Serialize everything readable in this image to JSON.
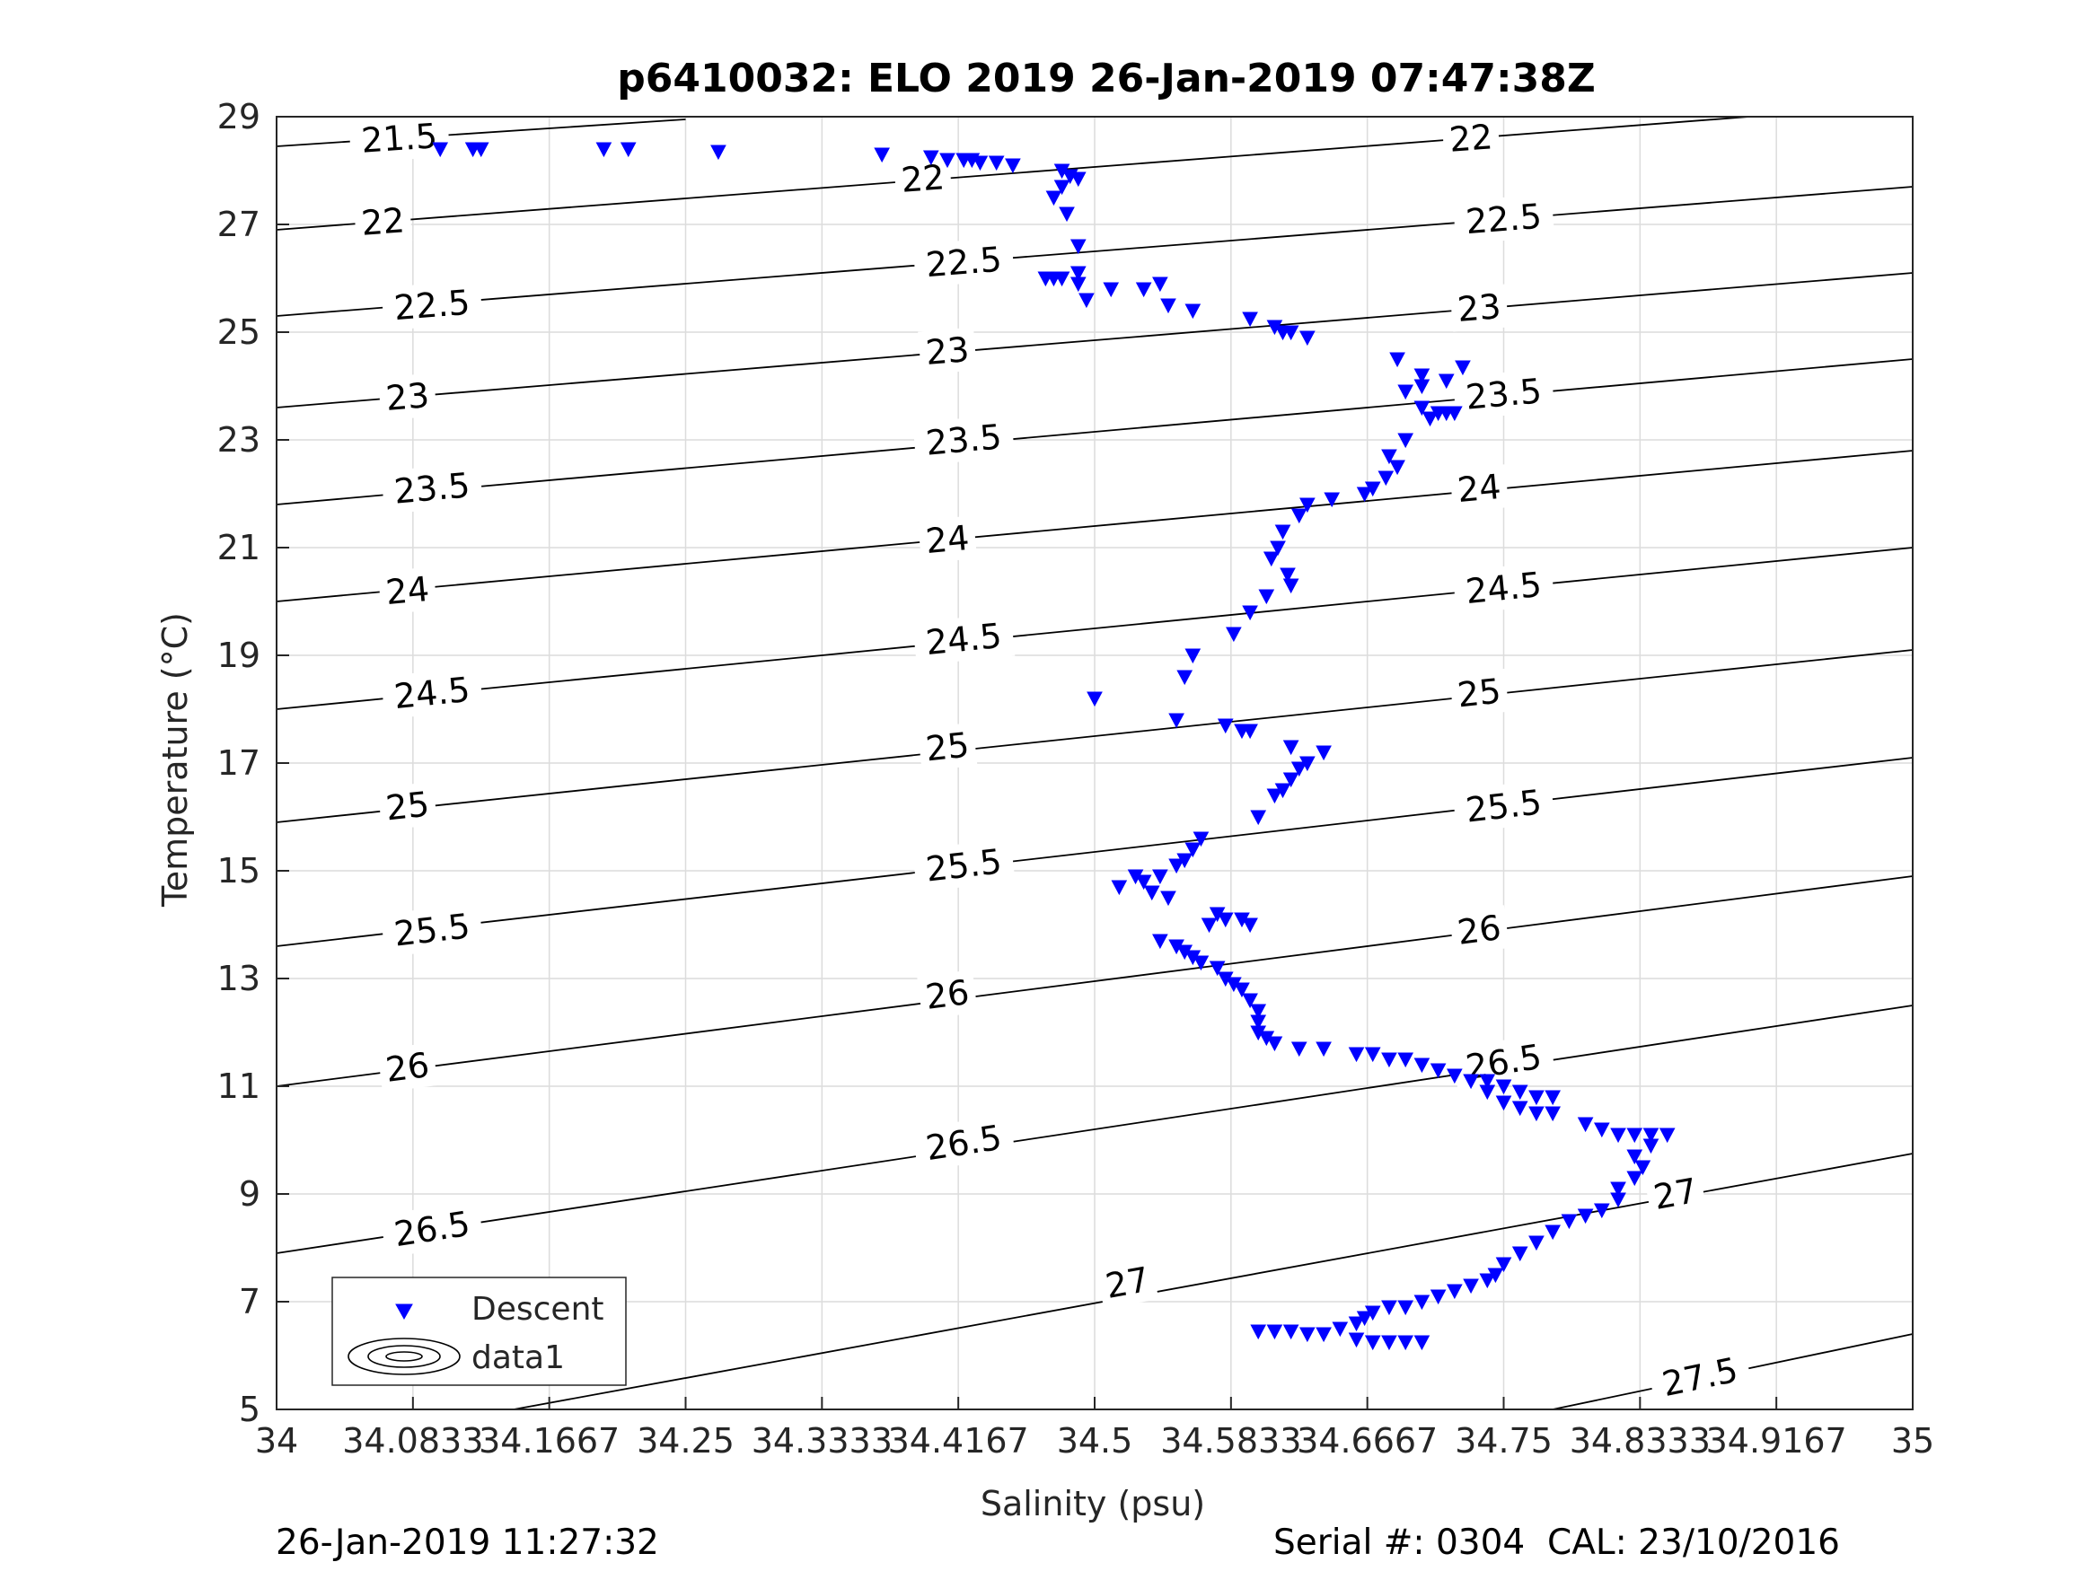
{
  "chart_data": {
    "type": "scatter",
    "title": "p6410032: ELO 2019 26-Jan-2019 07:47:38Z",
    "xlabel": "Salinity (psu)",
    "ylabel": "Temperature (°C)",
    "xlim": [
      34,
      35
    ],
    "ylim": [
      5,
      29
    ],
    "xticks": [
      "34",
      "34.0833",
      "34.1667",
      "34.25",
      "34.3333",
      "34.4167",
      "34.5",
      "34.5833",
      "34.6667",
      "34.75",
      "34.8333",
      "34.9167",
      "35"
    ],
    "yticks": [
      "5",
      "7",
      "9",
      "11",
      "13",
      "15",
      "17",
      "19",
      "21",
      "23",
      "25",
      "27",
      "29"
    ],
    "grid": true,
    "legend": {
      "position": "bottom-left",
      "entries": [
        "Descent",
        "data1"
      ]
    },
    "marker_color": "#0000ff",
    "series": [
      {
        "name": "Descent",
        "marker": "down-triangle",
        "points": [
          [
            34.1,
            28.4
          ],
          [
            34.12,
            28.4
          ],
          [
            34.125,
            28.4
          ],
          [
            34.2,
            28.4
          ],
          [
            34.215,
            28.4
          ],
          [
            34.27,
            28.35
          ],
          [
            34.37,
            28.3
          ],
          [
            34.4,
            28.25
          ],
          [
            34.41,
            28.2
          ],
          [
            34.42,
            28.2
          ],
          [
            34.425,
            28.2
          ],
          [
            34.43,
            28.15
          ],
          [
            34.44,
            28.15
          ],
          [
            34.45,
            28.1
          ],
          [
            34.48,
            28.0
          ],
          [
            34.485,
            27.9
          ],
          [
            34.49,
            27.85
          ],
          [
            34.48,
            27.7
          ],
          [
            34.475,
            27.5
          ],
          [
            34.483,
            27.2
          ],
          [
            34.49,
            26.6
          ],
          [
            34.49,
            26.1
          ],
          [
            34.47,
            26.0
          ],
          [
            34.475,
            26.0
          ],
          [
            34.48,
            26.0
          ],
          [
            34.49,
            25.9
          ],
          [
            34.495,
            25.6
          ],
          [
            34.51,
            25.8
          ],
          [
            34.53,
            25.8
          ],
          [
            34.54,
            25.9
          ],
          [
            34.545,
            25.5
          ],
          [
            34.56,
            25.4
          ],
          [
            34.595,
            25.25
          ],
          [
            34.61,
            25.1
          ],
          [
            34.615,
            25.0
          ],
          [
            34.62,
            25.0
          ],
          [
            34.63,
            24.9
          ],
          [
            34.685,
            24.5
          ],
          [
            34.7,
            24.2
          ],
          [
            34.7,
            24.0
          ],
          [
            34.715,
            24.1
          ],
          [
            34.725,
            24.35
          ],
          [
            34.69,
            23.9
          ],
          [
            34.7,
            23.6
          ],
          [
            34.705,
            23.4
          ],
          [
            34.71,
            23.5
          ],
          [
            34.715,
            23.5
          ],
          [
            34.72,
            23.5
          ],
          [
            34.69,
            23.0
          ],
          [
            34.68,
            22.7
          ],
          [
            34.685,
            22.5
          ],
          [
            34.678,
            22.3
          ],
          [
            34.67,
            22.1
          ],
          [
            34.665,
            22.0
          ],
          [
            34.645,
            21.9
          ],
          [
            34.63,
            21.8
          ],
          [
            34.625,
            21.6
          ],
          [
            34.615,
            21.3
          ],
          [
            34.612,
            21.0
          ],
          [
            34.608,
            20.8
          ],
          [
            34.618,
            20.5
          ],
          [
            34.62,
            20.3
          ],
          [
            34.605,
            20.1
          ],
          [
            34.595,
            19.8
          ],
          [
            34.585,
            19.4
          ],
          [
            34.56,
            19.0
          ],
          [
            34.555,
            18.6
          ],
          [
            34.5,
            18.2
          ],
          [
            34.55,
            17.8
          ],
          [
            34.58,
            17.7
          ],
          [
            34.59,
            17.6
          ],
          [
            34.595,
            17.6
          ],
          [
            34.62,
            17.3
          ],
          [
            34.64,
            17.2
          ],
          [
            34.63,
            17.0
          ],
          [
            34.625,
            16.9
          ],
          [
            34.62,
            16.7
          ],
          [
            34.615,
            16.5
          ],
          [
            34.61,
            16.4
          ],
          [
            34.6,
            16.0
          ],
          [
            34.565,
            15.6
          ],
          [
            34.56,
            15.4
          ],
          [
            34.555,
            15.2
          ],
          [
            34.55,
            15.1
          ],
          [
            34.54,
            14.9
          ],
          [
            34.525,
            14.9
          ],
          [
            34.515,
            14.7
          ],
          [
            34.53,
            14.8
          ],
          [
            34.535,
            14.6
          ],
          [
            34.545,
            14.5
          ],
          [
            34.575,
            14.2
          ],
          [
            34.58,
            14.1
          ],
          [
            34.59,
            14.1
          ],
          [
            34.595,
            14.0
          ],
          [
            34.57,
            14.0
          ],
          [
            34.54,
            13.7
          ],
          [
            34.55,
            13.6
          ],
          [
            34.555,
            13.5
          ],
          [
            34.56,
            13.4
          ],
          [
            34.565,
            13.3
          ],
          [
            34.575,
            13.2
          ],
          [
            34.58,
            13.0
          ],
          [
            34.585,
            12.9
          ],
          [
            34.59,
            12.8
          ],
          [
            34.595,
            12.6
          ],
          [
            34.6,
            12.4
          ],
          [
            34.6,
            12.2
          ],
          [
            34.6,
            12.0
          ],
          [
            34.605,
            11.9
          ],
          [
            34.61,
            11.8
          ],
          [
            34.625,
            11.7
          ],
          [
            34.64,
            11.7
          ],
          [
            34.66,
            11.6
          ],
          [
            34.67,
            11.6
          ],
          [
            34.68,
            11.5
          ],
          [
            34.69,
            11.5
          ],
          [
            34.7,
            11.4
          ],
          [
            34.71,
            11.3
          ],
          [
            34.72,
            11.2
          ],
          [
            34.73,
            11.1
          ],
          [
            34.74,
            11.1
          ],
          [
            34.75,
            11.0
          ],
          [
            34.76,
            10.9
          ],
          [
            34.77,
            10.8
          ],
          [
            34.78,
            10.8
          ],
          [
            34.74,
            10.9
          ],
          [
            34.75,
            10.7
          ],
          [
            34.76,
            10.6
          ],
          [
            34.77,
            10.5
          ],
          [
            34.78,
            10.5
          ],
          [
            34.8,
            10.3
          ],
          [
            34.81,
            10.2
          ],
          [
            34.82,
            10.1
          ],
          [
            34.83,
            10.1
          ],
          [
            34.84,
            10.1
          ],
          [
            34.85,
            10.1
          ],
          [
            34.84,
            9.9
          ],
          [
            34.83,
            9.7
          ],
          [
            34.835,
            9.5
          ],
          [
            34.83,
            9.3
          ],
          [
            34.82,
            9.1
          ],
          [
            34.82,
            8.9
          ],
          [
            34.81,
            8.7
          ],
          [
            34.8,
            8.6
          ],
          [
            34.79,
            8.5
          ],
          [
            34.78,
            8.3
          ],
          [
            34.77,
            8.1
          ],
          [
            34.76,
            7.9
          ],
          [
            34.75,
            7.7
          ],
          [
            34.745,
            7.5
          ],
          [
            34.74,
            7.4
          ],
          [
            34.73,
            7.3
          ],
          [
            34.72,
            7.2
          ],
          [
            34.71,
            7.1
          ],
          [
            34.7,
            7.0
          ],
          [
            34.69,
            6.9
          ],
          [
            34.68,
            6.9
          ],
          [
            34.67,
            6.8
          ],
          [
            34.665,
            6.7
          ],
          [
            34.66,
            6.6
          ],
          [
            34.65,
            6.5
          ],
          [
            34.64,
            6.4
          ],
          [
            34.63,
            6.4
          ],
          [
            34.62,
            6.45
          ],
          [
            34.61,
            6.45
          ],
          [
            34.6,
            6.45
          ],
          [
            34.66,
            6.3
          ],
          [
            34.67,
            6.25
          ],
          [
            34.68,
            6.25
          ],
          [
            34.69,
            6.25
          ],
          [
            34.7,
            6.25
          ]
        ]
      }
    ],
    "contours": {
      "name": "data1",
      "levels": [
        {
          "label": "21.5",
          "line": [
            [
              34,
              28.45
            ],
            [
              34.25,
              28.95
            ]
          ],
          "label_at": [
            [
              34.075,
              28.6
            ]
          ]
        },
        {
          "label": "22",
          "line": [
            [
              34,
              26.9
            ],
            [
              34.9,
              29.0
            ]
          ],
          "label_at": [
            [
              34.065,
              27.05
            ],
            [
              34.395,
              27.85
            ],
            [
              34.73,
              28.6
            ]
          ]
        },
        {
          "label": "22.5",
          "line": [
            [
              34,
              25.3
            ],
            [
              35,
              27.7
            ]
          ],
          "label_at": [
            [
              34.095,
              25.5
            ],
            [
              34.42,
              26.3
            ],
            [
              34.75,
              27.1
            ]
          ]
        },
        {
          "label": "23",
          "line": [
            [
              34,
              23.6
            ],
            [
              35,
              26.1
            ]
          ],
          "label_at": [
            [
              34.08,
              23.8
            ],
            [
              34.41,
              24.65
            ],
            [
              34.735,
              25.45
            ]
          ]
        },
        {
          "label": "23.5",
          "line": [
            [
              34,
              21.8
            ],
            [
              35,
              24.5
            ]
          ],
          "label_at": [
            [
              34.095,
              22.1
            ],
            [
              34.42,
              23.0
            ],
            [
              34.75,
              23.85
            ]
          ]
        },
        {
          "label": "24",
          "line": [
            [
              34,
              20.0
            ],
            [
              35,
              22.8
            ]
          ],
          "label_at": [
            [
              34.08,
              20.2
            ],
            [
              34.41,
              21.15
            ],
            [
              34.735,
              22.1
            ]
          ]
        },
        {
          "label": "24.5",
          "line": [
            [
              34,
              18.0
            ],
            [
              35,
              21.0
            ]
          ],
          "label_at": [
            [
              34.095,
              18.3
            ],
            [
              34.42,
              19.3
            ],
            [
              34.75,
              20.25
            ]
          ]
        },
        {
          "label": "25",
          "line": [
            [
              34,
              15.9
            ],
            [
              35,
              19.1
            ]
          ],
          "label_at": [
            [
              34.08,
              16.2
            ],
            [
              34.41,
              17.3
            ],
            [
              34.735,
              18.3
            ]
          ]
        },
        {
          "label": "25.5",
          "line": [
            [
              34,
              13.6
            ],
            [
              35,
              17.1
            ]
          ],
          "label_at": [
            [
              34.095,
              13.9
            ],
            [
              34.42,
              15.1
            ],
            [
              34.75,
              16.2
            ]
          ]
        },
        {
          "label": "26",
          "line": [
            [
              34,
              11.0
            ],
            [
              35,
              14.9
            ]
          ],
          "label_at": [
            [
              34.08,
              11.35
            ],
            [
              34.41,
              12.7
            ],
            [
              34.735,
              13.9
            ]
          ]
        },
        {
          "label": "26.5",
          "line": [
            [
              34,
              7.9
            ],
            [
              35,
              12.5
            ]
          ],
          "label_at": [
            [
              34.095,
              8.35
            ],
            [
              34.42,
              9.95
            ],
            [
              34.75,
              11.45
            ]
          ]
        },
        {
          "label": "27",
          "line": [
            [
              34.145,
              5.0
            ],
            [
              35,
              9.75
            ]
          ],
          "label_at": [
            [
              34.52,
              7.35
            ],
            [
              34.855,
              9.0
            ]
          ]
        },
        {
          "label": "27.5",
          "line": [
            [
              34.78,
              5.0
            ],
            [
              35,
              6.4
            ]
          ],
          "label_at": [
            [
              34.87,
              5.6
            ]
          ]
        }
      ]
    }
  },
  "footer": {
    "timestamp": "26-Jan-2019 11:27:32",
    "serial": "Serial #: 0304  CAL: 23/10/2016"
  }
}
